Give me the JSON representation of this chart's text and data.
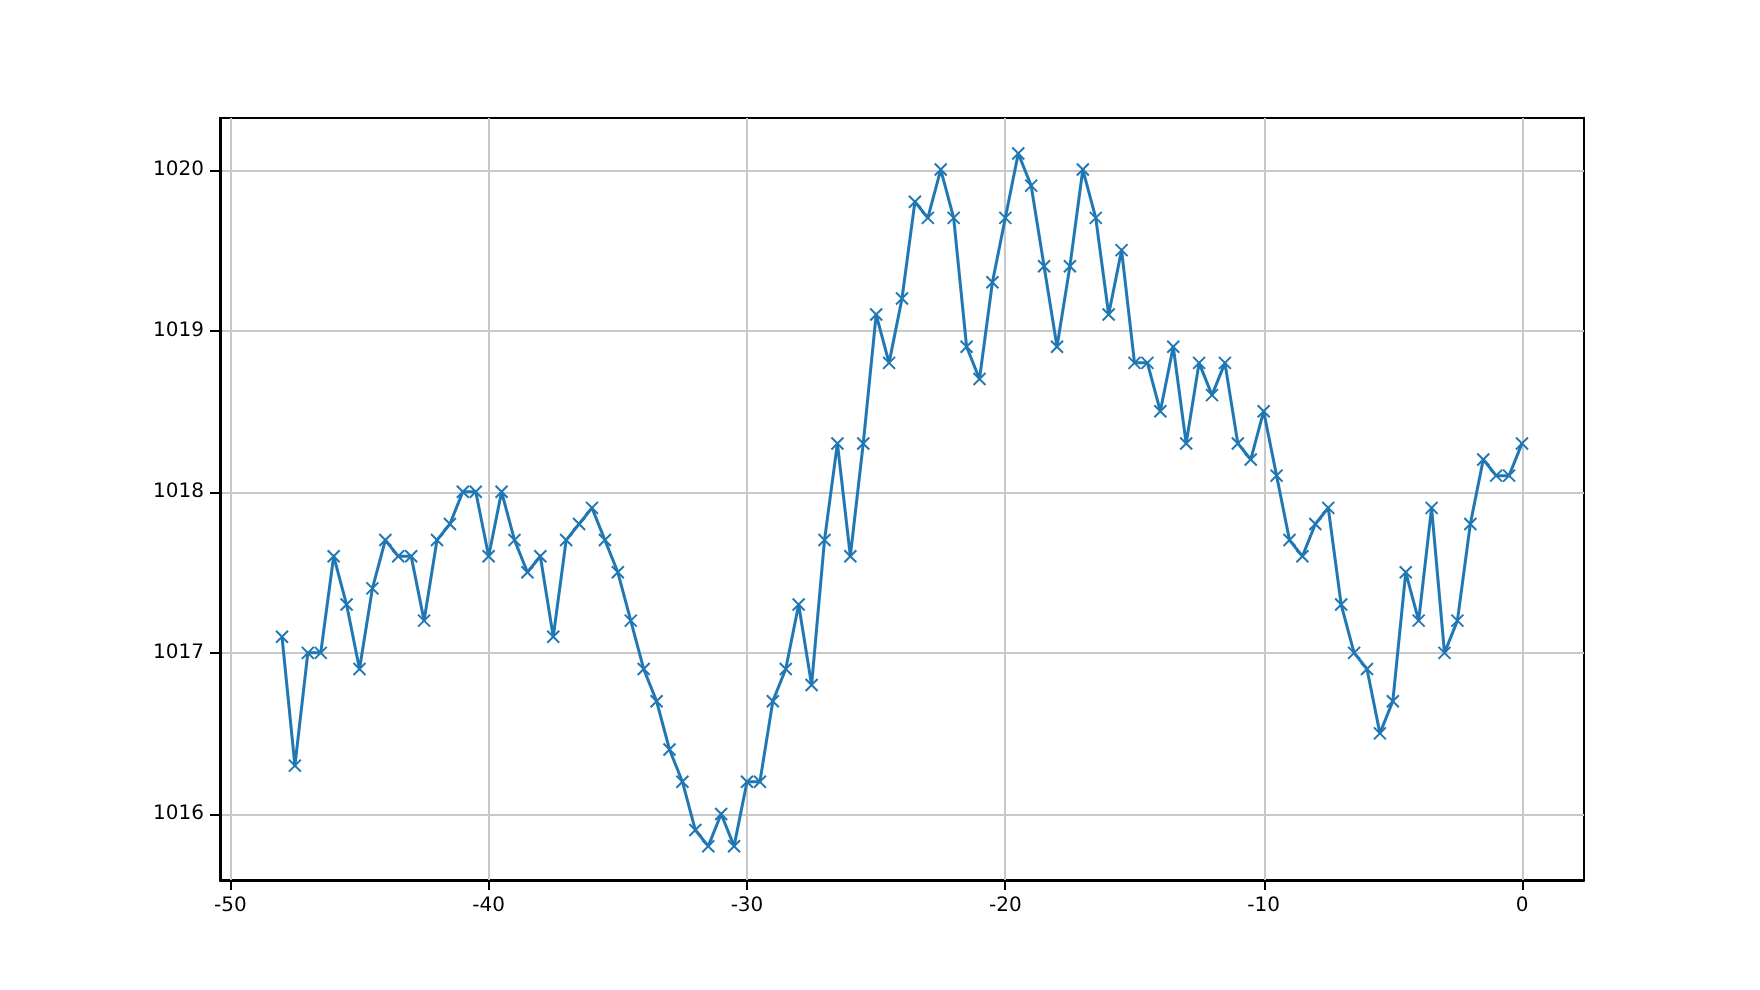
{
  "chart_data": {
    "type": "line",
    "x": [
      -48,
      -47.5,
      -47,
      -46.5,
      -46,
      -45.5,
      -45,
      -44.5,
      -44,
      -43.5,
      -43,
      -42.5,
      -42,
      -41.5,
      -41,
      -40.5,
      -40,
      -39.5,
      -39,
      -38.5,
      -38,
      -37.5,
      -37,
      -36.5,
      -36,
      -35.5,
      -35,
      -34.5,
      -34,
      -33.5,
      -33,
      -32.5,
      -32,
      -31.5,
      -31,
      -30.5,
      -30,
      -29.5,
      -29,
      -28.5,
      -28,
      -27.5,
      -27,
      -26.5,
      -26,
      -25.5,
      -25,
      -24.5,
      -24,
      -23.5,
      -23,
      -22.5,
      -22,
      -21.5,
      -21,
      -20.5,
      -20,
      -19.5,
      -19,
      -18.5,
      -18,
      -17.5,
      -17,
      -16.5,
      -16,
      -15.5,
      -15,
      -14.5,
      -14,
      -13.5,
      -13,
      -12.5,
      -12,
      -11.5,
      -11,
      -10.5,
      -10,
      -9.5,
      -9,
      -8.5,
      -8,
      -7.5,
      -7,
      -6.5,
      -6,
      -5.5,
      -5,
      -4.5,
      -4,
      -3.5,
      -3,
      -2.5,
      -2,
      -1.5,
      -1,
      -0.5,
      0
    ],
    "series": [
      {
        "color": "#1f77b4",
        "values": [
          1017.1,
          1016.3,
          1017.0,
          1017.0,
          1017.6,
          1017.3,
          1016.9,
          1017.4,
          1017.7,
          1017.6,
          1017.6,
          1017.2,
          1017.7,
          1017.8,
          1018.0,
          1018.0,
          1017.6,
          1018.0,
          1017.7,
          1017.5,
          1017.6,
          1017.1,
          1017.7,
          1017.8,
          1017.9,
          1017.7,
          1017.5,
          1017.2,
          1016.9,
          1016.7,
          1016.4,
          1016.2,
          1015.9,
          1015.8,
          1016.0,
          1015.8,
          1016.2,
          1016.2,
          1016.7,
          1016.9,
          1017.3,
          1016.8,
          1017.7,
          1018.3,
          1017.6,
          1018.3,
          1019.1,
          1018.8,
          1019.2,
          1019.8,
          1019.7,
          1020.0,
          1019.7,
          1018.9,
          1018.7,
          1019.3,
          1019.7,
          1020.1,
          1019.9,
          1019.4,
          1018.9,
          1019.4,
          1020.0,
          1019.7,
          1019.1,
          1019.5,
          1018.8,
          1018.8,
          1018.5,
          1018.9,
          1018.3,
          1018.8,
          1018.6,
          1018.8,
          1018.3,
          1018.2,
          1018.5,
          1018.1,
          1017.7,
          1017.6,
          1017.8,
          1017.9,
          1017.3,
          1017.0,
          1016.9,
          1016.5,
          1016.7,
          1017.5,
          1017.2,
          1017.9,
          1017.0,
          1017.2,
          1017.8,
          1018.2,
          1018.1,
          1018.1,
          1018.3
        ]
      }
    ],
    "xlim": [
      -50.4,
      2.4
    ],
    "xticks": [
      -50,
      -40,
      -30,
      -20,
      -10,
      0
    ],
    "ylim": [
      1015.59,
      1020.32
    ],
    "yticks": [
      1016,
      1017,
      1018,
      1019,
      1020
    ],
    "grid": true,
    "marker": "cross",
    "line_style": "solid"
  }
}
